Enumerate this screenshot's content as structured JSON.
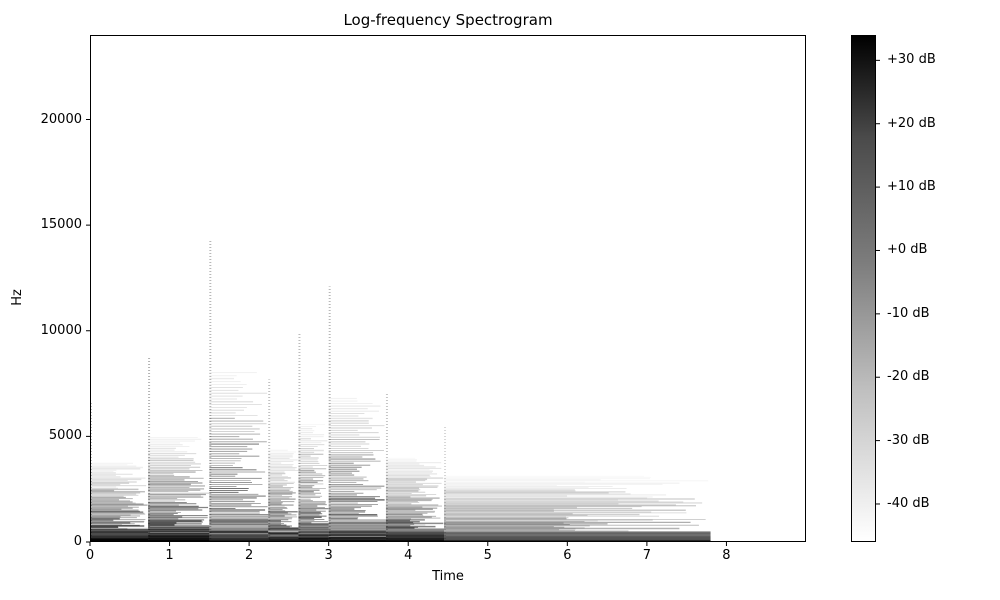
{
  "chart_data": {
    "type": "heatmap",
    "title": "Log-frequency Spectrogram",
    "xlabel": "Time",
    "ylabel": "Hz",
    "xlim": [
      0,
      9
    ],
    "ylim": [
      0,
      24000
    ],
    "x_ticks": [
      "0",
      "1",
      "2",
      "3",
      "4",
      "5",
      "6",
      "7",
      "8"
    ],
    "y_ticks": [
      "0",
      "5000",
      "10000",
      "15000",
      "20000"
    ],
    "colorbar": {
      "range_db": [
        -46,
        34
      ],
      "labels": [
        "+30 dB",
        "+20 dB",
        "+10 dB",
        "+0 dB",
        "-10 dB",
        "-20 dB",
        "-30 dB",
        "-40 dB"
      ],
      "values": [
        30,
        20,
        10,
        0,
        -10,
        -20,
        -30,
        -40
      ],
      "colormap": "gray_r"
    },
    "onsets_s": [
      0,
      0.73,
      1.5,
      2.24,
      2.62,
      3.0,
      3.72,
      4.45
    ],
    "events": [
      {
        "start": 0.0,
        "end": 0.73,
        "max_hz": 3000,
        "intensity": 0.75
      },
      {
        "start": 0.73,
        "end": 1.5,
        "max_hz": 4000,
        "intensity": 0.85
      },
      {
        "start": 1.5,
        "end": 2.24,
        "max_hz": 6500,
        "intensity": 0.8
      },
      {
        "start": 2.24,
        "end": 2.62,
        "max_hz": 3500,
        "intensity": 0.7
      },
      {
        "start": 2.62,
        "end": 3.0,
        "max_hz": 4500,
        "intensity": 0.75
      },
      {
        "start": 3.0,
        "end": 3.72,
        "max_hz": 5500,
        "intensity": 0.8
      },
      {
        "start": 3.72,
        "end": 4.45,
        "max_hz": 3200,
        "intensity": 0.65
      },
      {
        "start": 4.45,
        "end": 7.8,
        "max_hz": 2500,
        "intensity": 0.45
      }
    ]
  }
}
